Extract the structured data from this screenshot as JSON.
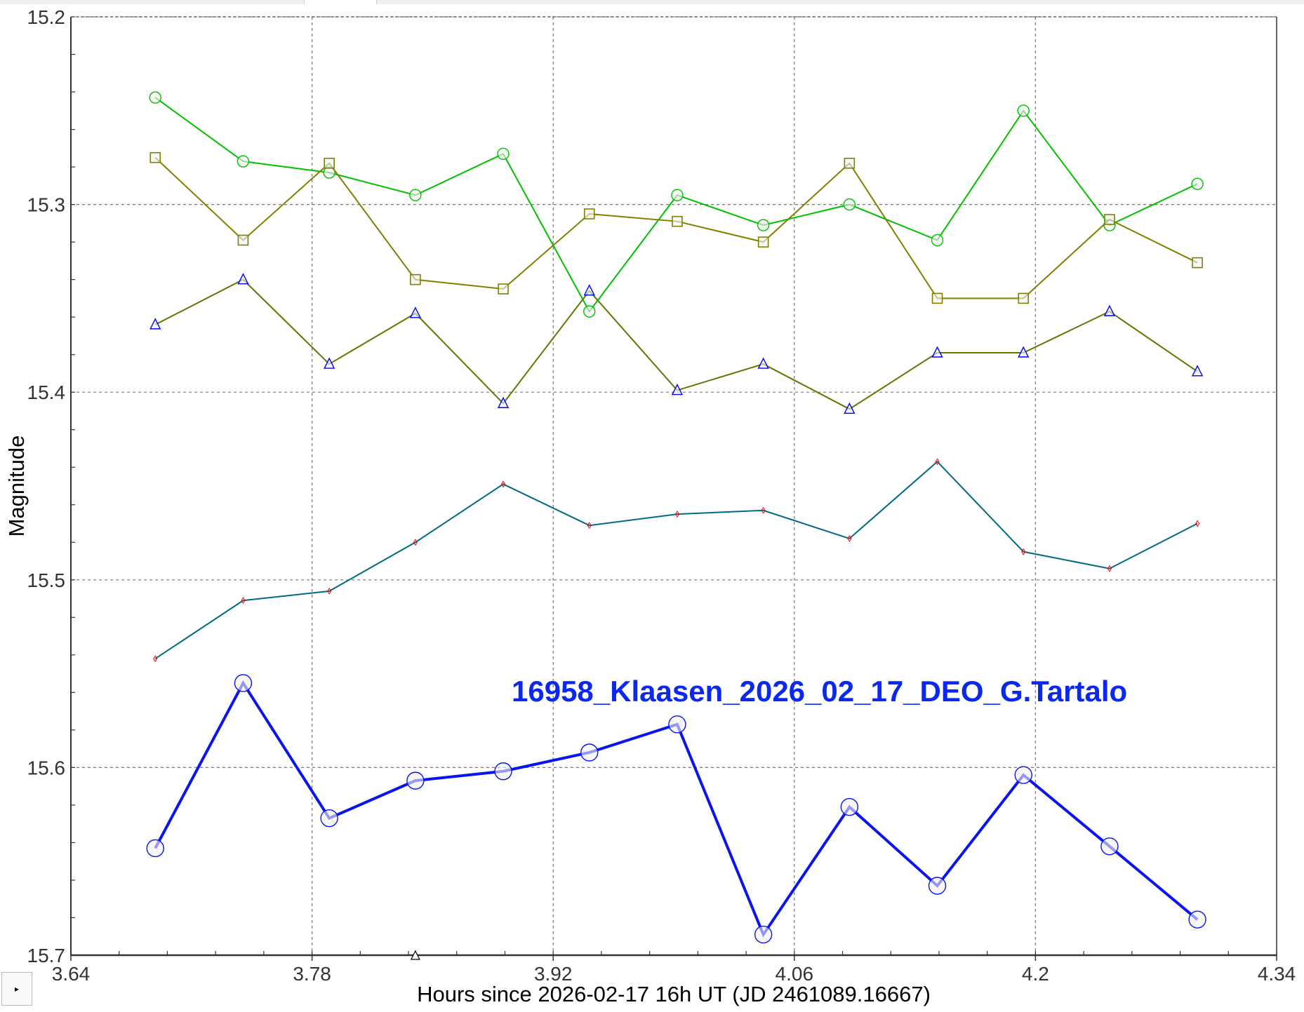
{
  "chart_data": {
    "type": "line",
    "xlabel": "Hours since 2026-02-17 16h UT (JD 2461089.16667)",
    "ylabel": "Magnitude",
    "xlim": [
      3.64,
      4.34
    ],
    "ylim": [
      15.2,
      15.7
    ],
    "y_inverted": true,
    "grid": true,
    "xticks": [
      "3.64",
      "3.78",
      "3.92",
      "4.06",
      "4.2",
      "4.34"
    ],
    "yticks": [
      "15.2",
      "15.3",
      "15.4",
      "15.5",
      "15.6",
      "15.7"
    ],
    "annotation": "16958_Klaasen_2026_02_17_DEO_G.Tartalo",
    "annotation_color": "#0a28f0",
    "x": [
      3.689,
      3.74,
      3.79,
      3.84,
      3.891,
      3.941,
      3.992,
      4.042,
      4.092,
      4.143,
      4.193,
      4.243,
      4.294
    ],
    "series": [
      {
        "marker": "circle",
        "line_color": "#00c000",
        "marker_color": "#00c000",
        "values": [
          15.243,
          15.277,
          15.283,
          15.295,
          15.273,
          15.357,
          15.295,
          15.311,
          15.3,
          15.319,
          15.25,
          15.311,
          15.289
        ]
      },
      {
        "marker": "square",
        "line_color": "#808000",
        "marker_color": "#808000",
        "values": [
          15.275,
          15.319,
          15.278,
          15.34,
          15.345,
          15.305,
          15.309,
          15.32,
          15.278,
          15.35,
          15.35,
          15.308,
          15.331
        ]
      },
      {
        "marker": "triangle",
        "line_color": "#5a7a00",
        "marker_color": "#0000ff",
        "values": [
          15.364,
          15.34,
          15.385,
          15.358,
          15.406,
          15.346,
          15.399,
          15.385,
          15.409,
          15.379,
          15.379,
          15.357,
          15.389
        ]
      },
      {
        "marker": "diamond",
        "line_color": "#006a80",
        "marker_color": "#ff0000",
        "values": [
          15.542,
          15.511,
          15.506,
          15.48,
          15.449,
          15.471,
          15.465,
          15.463,
          15.478,
          15.437,
          15.485,
          15.494,
          15.47
        ]
      },
      {
        "marker": "big-circle",
        "line_color": "#0a14f0",
        "marker_color": "#0a14f0",
        "values": [
          15.643,
          15.555,
          15.627,
          15.607,
          15.602,
          15.592,
          15.577,
          15.689,
          15.621,
          15.663,
          15.604,
          15.642,
          15.681
        ]
      }
    ],
    "axis_marker": {
      "x": 3.84,
      "marker": "triangle"
    }
  },
  "controls": {
    "expand_icon": "triangle-right-icon",
    "expand_glyph": "▸"
  }
}
